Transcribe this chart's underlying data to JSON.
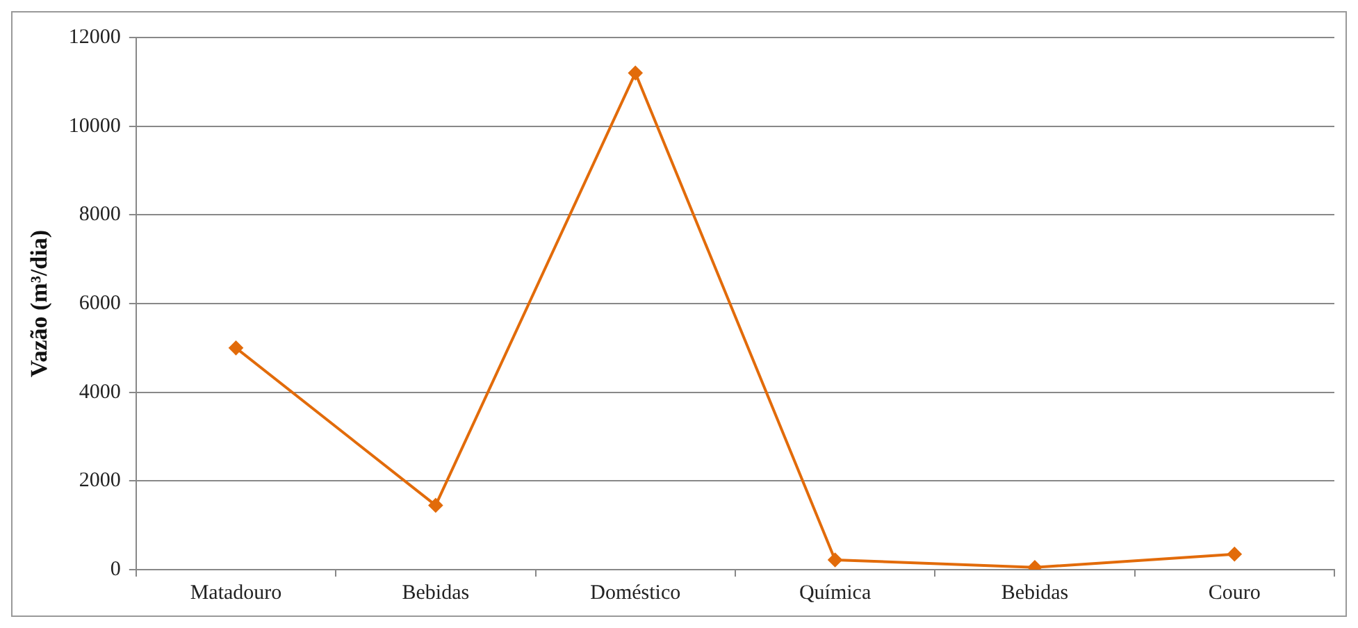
{
  "chart_data": {
    "type": "line",
    "ylabel": "Vazão (m³/dia)",
    "categories": [
      "Matadouro",
      "Bebidas",
      "Doméstico",
      "Química",
      "Bebidas",
      "Couro"
    ],
    "series": [
      {
        "color": "#e26b0a",
        "values": [
          5000,
          1450,
          11200,
          220,
          50,
          350
        ]
      }
    ],
    "ylim": [
      0,
      12000
    ],
    "yticks": [
      0,
      2000,
      4000,
      6000,
      8000,
      10000,
      12000
    ],
    "grid": "y",
    "legend": false,
    "marker": "diamond",
    "line_style": "solid"
  }
}
